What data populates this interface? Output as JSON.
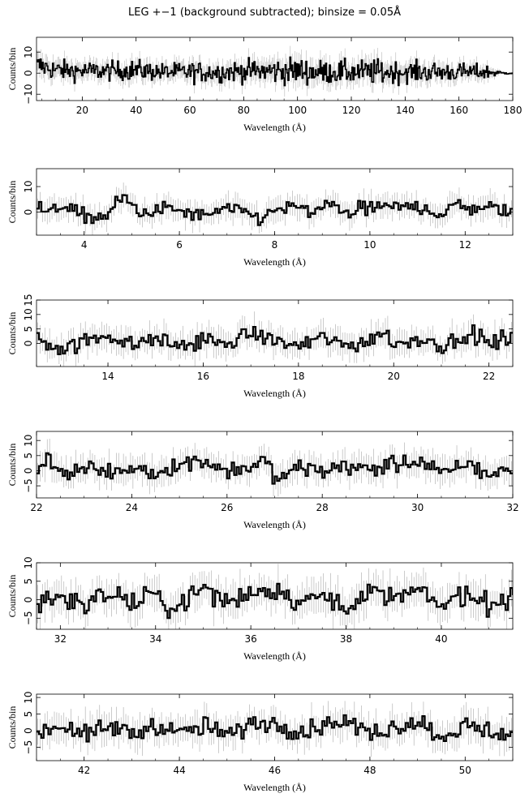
{
  "figure": {
    "title": "LEG +−1 (background subtracted); binsize = 0.05Å"
  },
  "chart_data": [
    {
      "type": "line",
      "xlabel": "Wavelength (Å)",
      "ylabel": "Counts/bin",
      "xlim": [
        3,
        180
      ],
      "ylim": [
        -13,
        17
      ],
      "xticks": [
        "20",
        "40",
        "60",
        "80",
        "100",
        "120",
        "140",
        "160",
        "180"
      ],
      "yticks": [
        "−10",
        "0",
        "10"
      ],
      "series_envelope": {
        "x": [
          4,
          10,
          20,
          30,
          40,
          50,
          60,
          70,
          80,
          90,
          100,
          110,
          120,
          130,
          140,
          150,
          160,
          170,
          176,
          180
        ],
        "y_high": [
          12,
          9,
          8,
          8,
          9,
          7,
          8,
          8,
          9,
          10,
          11,
          9,
          9,
          10,
          8,
          8,
          7,
          6,
          1,
          0.5
        ],
        "y_low": [
          -5,
          -6,
          -6,
          -6,
          -6,
          -6,
          -7,
          -7,
          -7,
          -8,
          -9,
          -8,
          -8,
          -9,
          -7,
          -7,
          -6,
          -5,
          -1,
          -0.5
        ]
      },
      "grid": false
    },
    {
      "type": "line",
      "xlabel": "Wavelength (Å)",
      "ylabel": "Counts/bin",
      "xlim": [
        3,
        13
      ],
      "ylim": [
        -9,
        17
      ],
      "xticks": [
        "4",
        "6",
        "8",
        "10",
        "12"
      ],
      "yticks": [
        "0",
        "10"
      ],
      "series": [
        {
          "x": [
            3,
            3.2,
            3.5,
            3.9,
            4.5,
            4.7,
            4.8,
            5.2,
            5.6,
            6.0,
            6.5,
            7.0,
            7.5,
            7.7,
            8.0,
            8.4,
            8.8,
            9.2,
            9.6,
            10.0,
            10.5,
            11.0,
            11.5,
            11.8,
            12.0,
            12.5,
            13.0
          ],
          "y": [
            5,
            -2,
            7,
            -3,
            -4,
            12,
            12,
            -2,
            3,
            1,
            -4,
            3,
            -2,
            -6,
            3,
            4,
            0,
            6,
            -1,
            4,
            4,
            5,
            -2,
            8,
            3,
            5,
            -2
          ]
        }
      ],
      "grid": false
    },
    {
      "type": "line",
      "xlabel": "Wavelength (Å)",
      "ylabel": "Counts/bin",
      "xlim": [
        12.5,
        22.5
      ],
      "ylim": [
        -8,
        15
      ],
      "xticks": [
        "14",
        "16",
        "18",
        "20",
        "22"
      ],
      "yticks": [
        "0",
        "5",
        "10",
        "15"
      ],
      "series": [
        {
          "x": [
            12.5,
            13.0,
            13.5,
            14.0,
            14.5,
            15.0,
            15.5,
            16.0,
            16.5,
            16.9,
            17.5,
            18.0,
            18.5,
            19.0,
            19.5,
            19.8,
            20.0,
            20.5,
            21.0,
            21.5,
            21.6,
            22.0,
            22.5
          ],
          "y": [
            3,
            -4,
            2,
            7,
            -2,
            4,
            -3,
            4,
            -1,
            8,
            2,
            -3,
            5,
            -2,
            3,
            10,
            -1,
            4,
            -2,
            3,
            9,
            -1,
            6
          ]
        }
      ],
      "grid": false
    },
    {
      "type": "line",
      "xlabel": "Wavelength (Å)",
      "ylabel": "Counts/bin",
      "xlim": [
        22,
        32
      ],
      "ylim": [
        -9,
        13
      ],
      "xticks": [
        "22",
        "24",
        "26",
        "28",
        "30",
        "32"
      ],
      "yticks": [
        "−5",
        "0",
        "5",
        "10"
      ],
      "series": [
        {
          "x": [
            22,
            22.2,
            22.5,
            23.0,
            23.5,
            24.0,
            24.5,
            25.0,
            25.6,
            26.0,
            26.5,
            26.8,
            27.0,
            27.5,
            28.0,
            28.5,
            29.0,
            29.5,
            30.0,
            30.5,
            31.0,
            31.5,
            32.0
          ],
          "y": [
            3,
            9,
            -2,
            4,
            -3,
            2,
            -1,
            5,
            7,
            -2,
            3,
            7,
            -7,
            3,
            -1,
            4,
            1,
            5,
            7,
            -2,
            5,
            -3,
            1
          ]
        }
      ],
      "grid": false
    },
    {
      "type": "line",
      "xlabel": "Wavelength (Å)",
      "ylabel": "Counts/bin",
      "xlim": [
        31.5,
        41.5
      ],
      "ylim": [
        -8,
        10
      ],
      "xticks": [
        "32",
        "34",
        "36",
        "38",
        "40"
      ],
      "yticks": [
        "−5",
        "0",
        "5",
        "10"
      ],
      "series": [
        {
          "x": [
            31.5,
            32.0,
            32.5,
            33.0,
            33.5,
            34.0,
            34.3,
            35.0,
            35.5,
            36.0,
            36.6,
            37.0,
            37.5,
            38.0,
            38.5,
            39.0,
            39.5,
            40.0,
            40.5,
            41.0,
            41.5
          ],
          "y": [
            -2,
            3,
            -4,
            4,
            -2,
            3,
            -6,
            7,
            -1,
            4,
            6,
            -2,
            3,
            -3,
            4,
            1,
            5,
            -4,
            4,
            -3,
            3
          ]
        }
      ],
      "grid": false
    },
    {
      "type": "line",
      "xlabel": "Wavelength (Å)",
      "ylabel": "Counts/bin",
      "xlim": [
        41,
        51
      ],
      "ylim": [
        -9,
        11
      ],
      "xticks": [
        "42",
        "44",
        "46",
        "48",
        "50"
      ],
      "yticks": [
        "−5",
        "0",
        "5",
        "10"
      ],
      "series": [
        {
          "x": [
            41,
            41.5,
            42.0,
            42.5,
            43.0,
            43.5,
            44.0,
            44.5,
            45.0,
            45.5,
            46.0,
            46.5,
            47.0,
            47.4,
            48.0,
            48.5,
            49.0,
            49.5,
            50.0,
            50.5,
            51.0
          ],
          "y": [
            -1,
            4,
            -3,
            3,
            -2,
            4,
            -2,
            3,
            -3,
            4,
            5,
            -1,
            4,
            7,
            -2,
            3,
            6,
            -4,
            4,
            -1,
            -2
          ]
        }
      ],
      "grid": false
    }
  ]
}
